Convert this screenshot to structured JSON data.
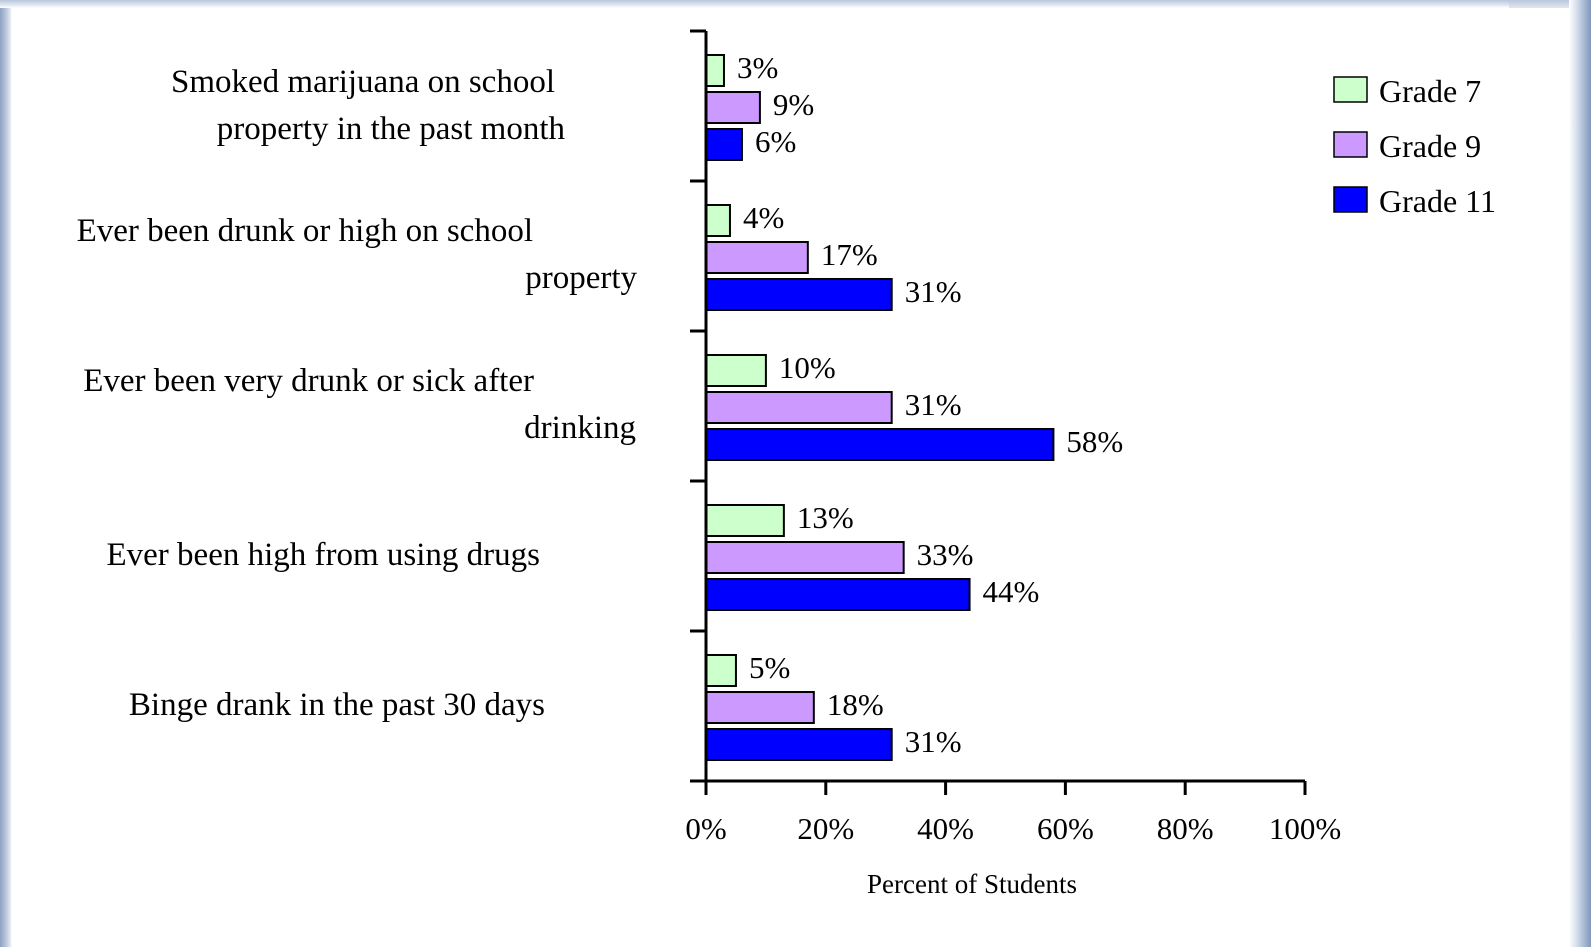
{
  "chart_data": {
    "type": "bar",
    "orientation": "horizontal",
    "categories": [
      [
        "Smoked marijuana on school",
        "property in the past month"
      ],
      [
        "Ever been drunk or high on school",
        "property"
      ],
      [
        "Ever been very drunk or sick after",
        "drinking"
      ],
      [
        "Ever been high from using drugs"
      ],
      [
        "Binge drank in the past 30 days"
      ]
    ],
    "series": [
      {
        "name": "Grade 7",
        "color": "#ccffcc",
        "values": [
          3,
          4,
          10,
          13,
          5
        ],
        "labels": [
          "3%",
          "4%",
          "10%",
          "13%",
          "5%"
        ]
      },
      {
        "name": "Grade 9",
        "color": "#cc99ff",
        "values": [
          9,
          17,
          31,
          33,
          18
        ],
        "labels": [
          "9%",
          "17%",
          "31%",
          "33%",
          "18%"
        ]
      },
      {
        "name": "Grade 11",
        "color": "#0000ff",
        "values": [
          6,
          31,
          58,
          44,
          31
        ],
        "labels": [
          "6%",
          "31%",
          "58%",
          "44%",
          "31%"
        ]
      }
    ],
    "xlim": [
      0,
      100
    ],
    "xticks": [
      "0%",
      "20%",
      "40%",
      "60%",
      "80%",
      "100%"
    ],
    "xlabel": "Percent of Students",
    "ylabel": "",
    "title": "",
    "legend_position": "top-right",
    "grid": false
  }
}
